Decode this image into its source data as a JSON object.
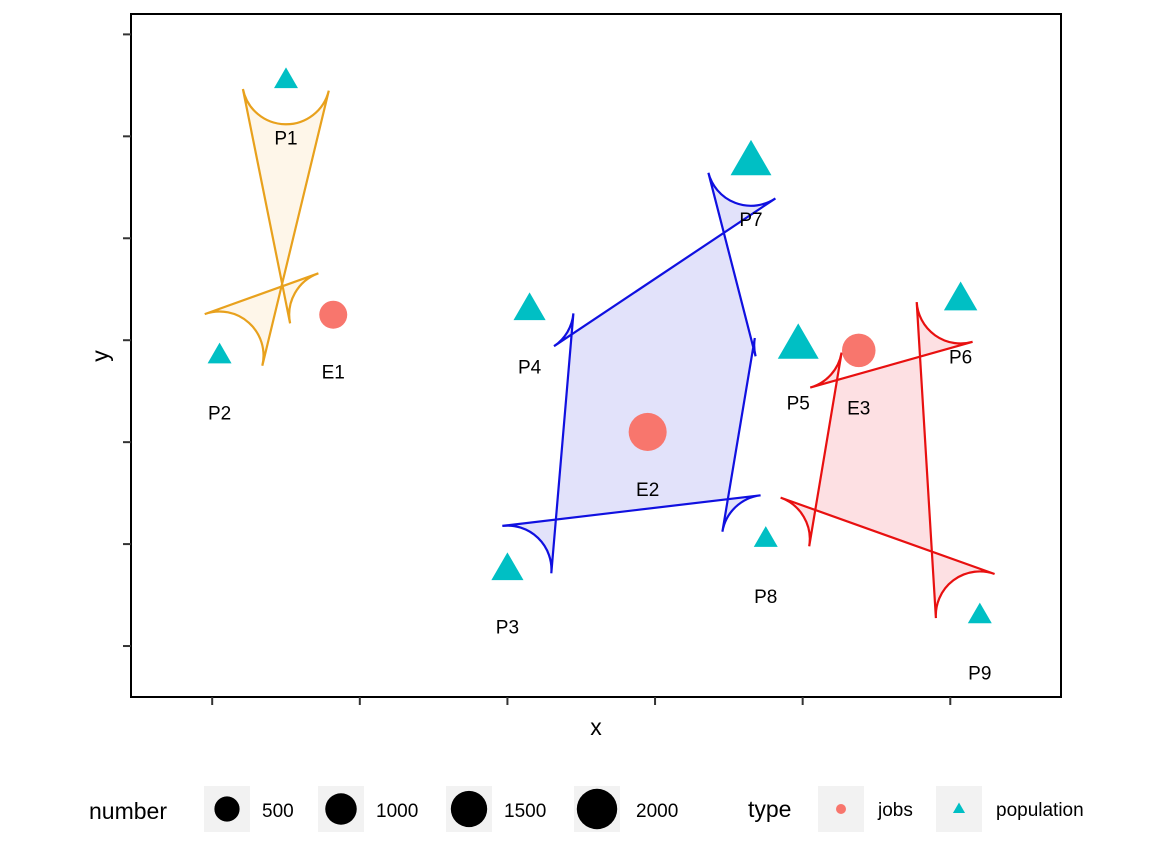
{
  "chart_data": {
    "type": "scatter",
    "xlabel": "x",
    "ylabel": "y",
    "xlim": [
      0.45,
      6.75
    ],
    "ylim": [
      -0.5,
      6.2
    ],
    "x_ticks": [
      1,
      2,
      3,
      4,
      5,
      6
    ],
    "y_ticks": [
      0,
      1,
      2,
      3,
      4,
      5,
      6
    ],
    "x_tick_labels_visible": false,
    "y_tick_labels_visible": false,
    "grid": false,
    "legend_placement": "bottom",
    "points": [
      {
        "label": "P1",
        "x": 1.5,
        "y": 5.55,
        "type": "population",
        "number": 300
      },
      {
        "label": "P2",
        "x": 1.05,
        "y": 2.85,
        "type": "population",
        "number": 300
      },
      {
        "label": "E1",
        "x": 1.82,
        "y": 3.25,
        "type": "jobs",
        "number": 700
      },
      {
        "label": "P3",
        "x": 3.0,
        "y": 0.75,
        "type": "population",
        "number": 800
      },
      {
        "label": "P4",
        "x": 3.15,
        "y": 3.3,
        "type": "population",
        "number": 800
      },
      {
        "label": "E2",
        "x": 3.95,
        "y": 2.1,
        "type": "jobs",
        "number": 1700
      },
      {
        "label": "P7",
        "x": 4.65,
        "y": 4.75,
        "type": "population",
        "number": 1600
      },
      {
        "label": "P5",
        "x": 4.97,
        "y": 2.95,
        "type": "population",
        "number": 1600
      },
      {
        "label": "E3",
        "x": 5.38,
        "y": 2.9,
        "type": "jobs",
        "number": 1200
      },
      {
        "label": "P8",
        "x": 4.75,
        "y": 1.05,
        "type": "population",
        "number": 300
      },
      {
        "label": "P6",
        "x": 6.07,
        "y": 3.4,
        "type": "population",
        "number": 900
      },
      {
        "label": "P9",
        "x": 6.2,
        "y": 0.3,
        "type": "population",
        "number": 300
      }
    ],
    "groups": [
      {
        "members": [
          "P1",
          "P2",
          "E1"
        ],
        "stroke": "#E8A11D",
        "fill": "#FDF3E1"
      },
      {
        "members": [
          "P3",
          "P4",
          "E2",
          "P7",
          "P5",
          "P8"
        ],
        "stroke": "#1010E0",
        "fill": "#D8D8F8"
      },
      {
        "members": [
          "P5",
          "E3",
          "P6",
          "P9",
          "P8"
        ],
        "stroke": "#E81010",
        "fill": "#FCD6DA"
      }
    ],
    "colors": {
      "jobs": "#F8766D",
      "population": "#00BFC4"
    },
    "legends": {
      "size": {
        "title": "number",
        "values": [
          500,
          1000,
          1500,
          2000
        ],
        "labels": [
          "500",
          "1000",
          "1500",
          "2000"
        ]
      },
      "type": {
        "title": "type",
        "items": [
          {
            "label": "jobs",
            "shape": "circle",
            "color": "#F8766D"
          },
          {
            "label": "population",
            "shape": "triangle",
            "color": "#00BFC4"
          }
        ]
      }
    }
  }
}
